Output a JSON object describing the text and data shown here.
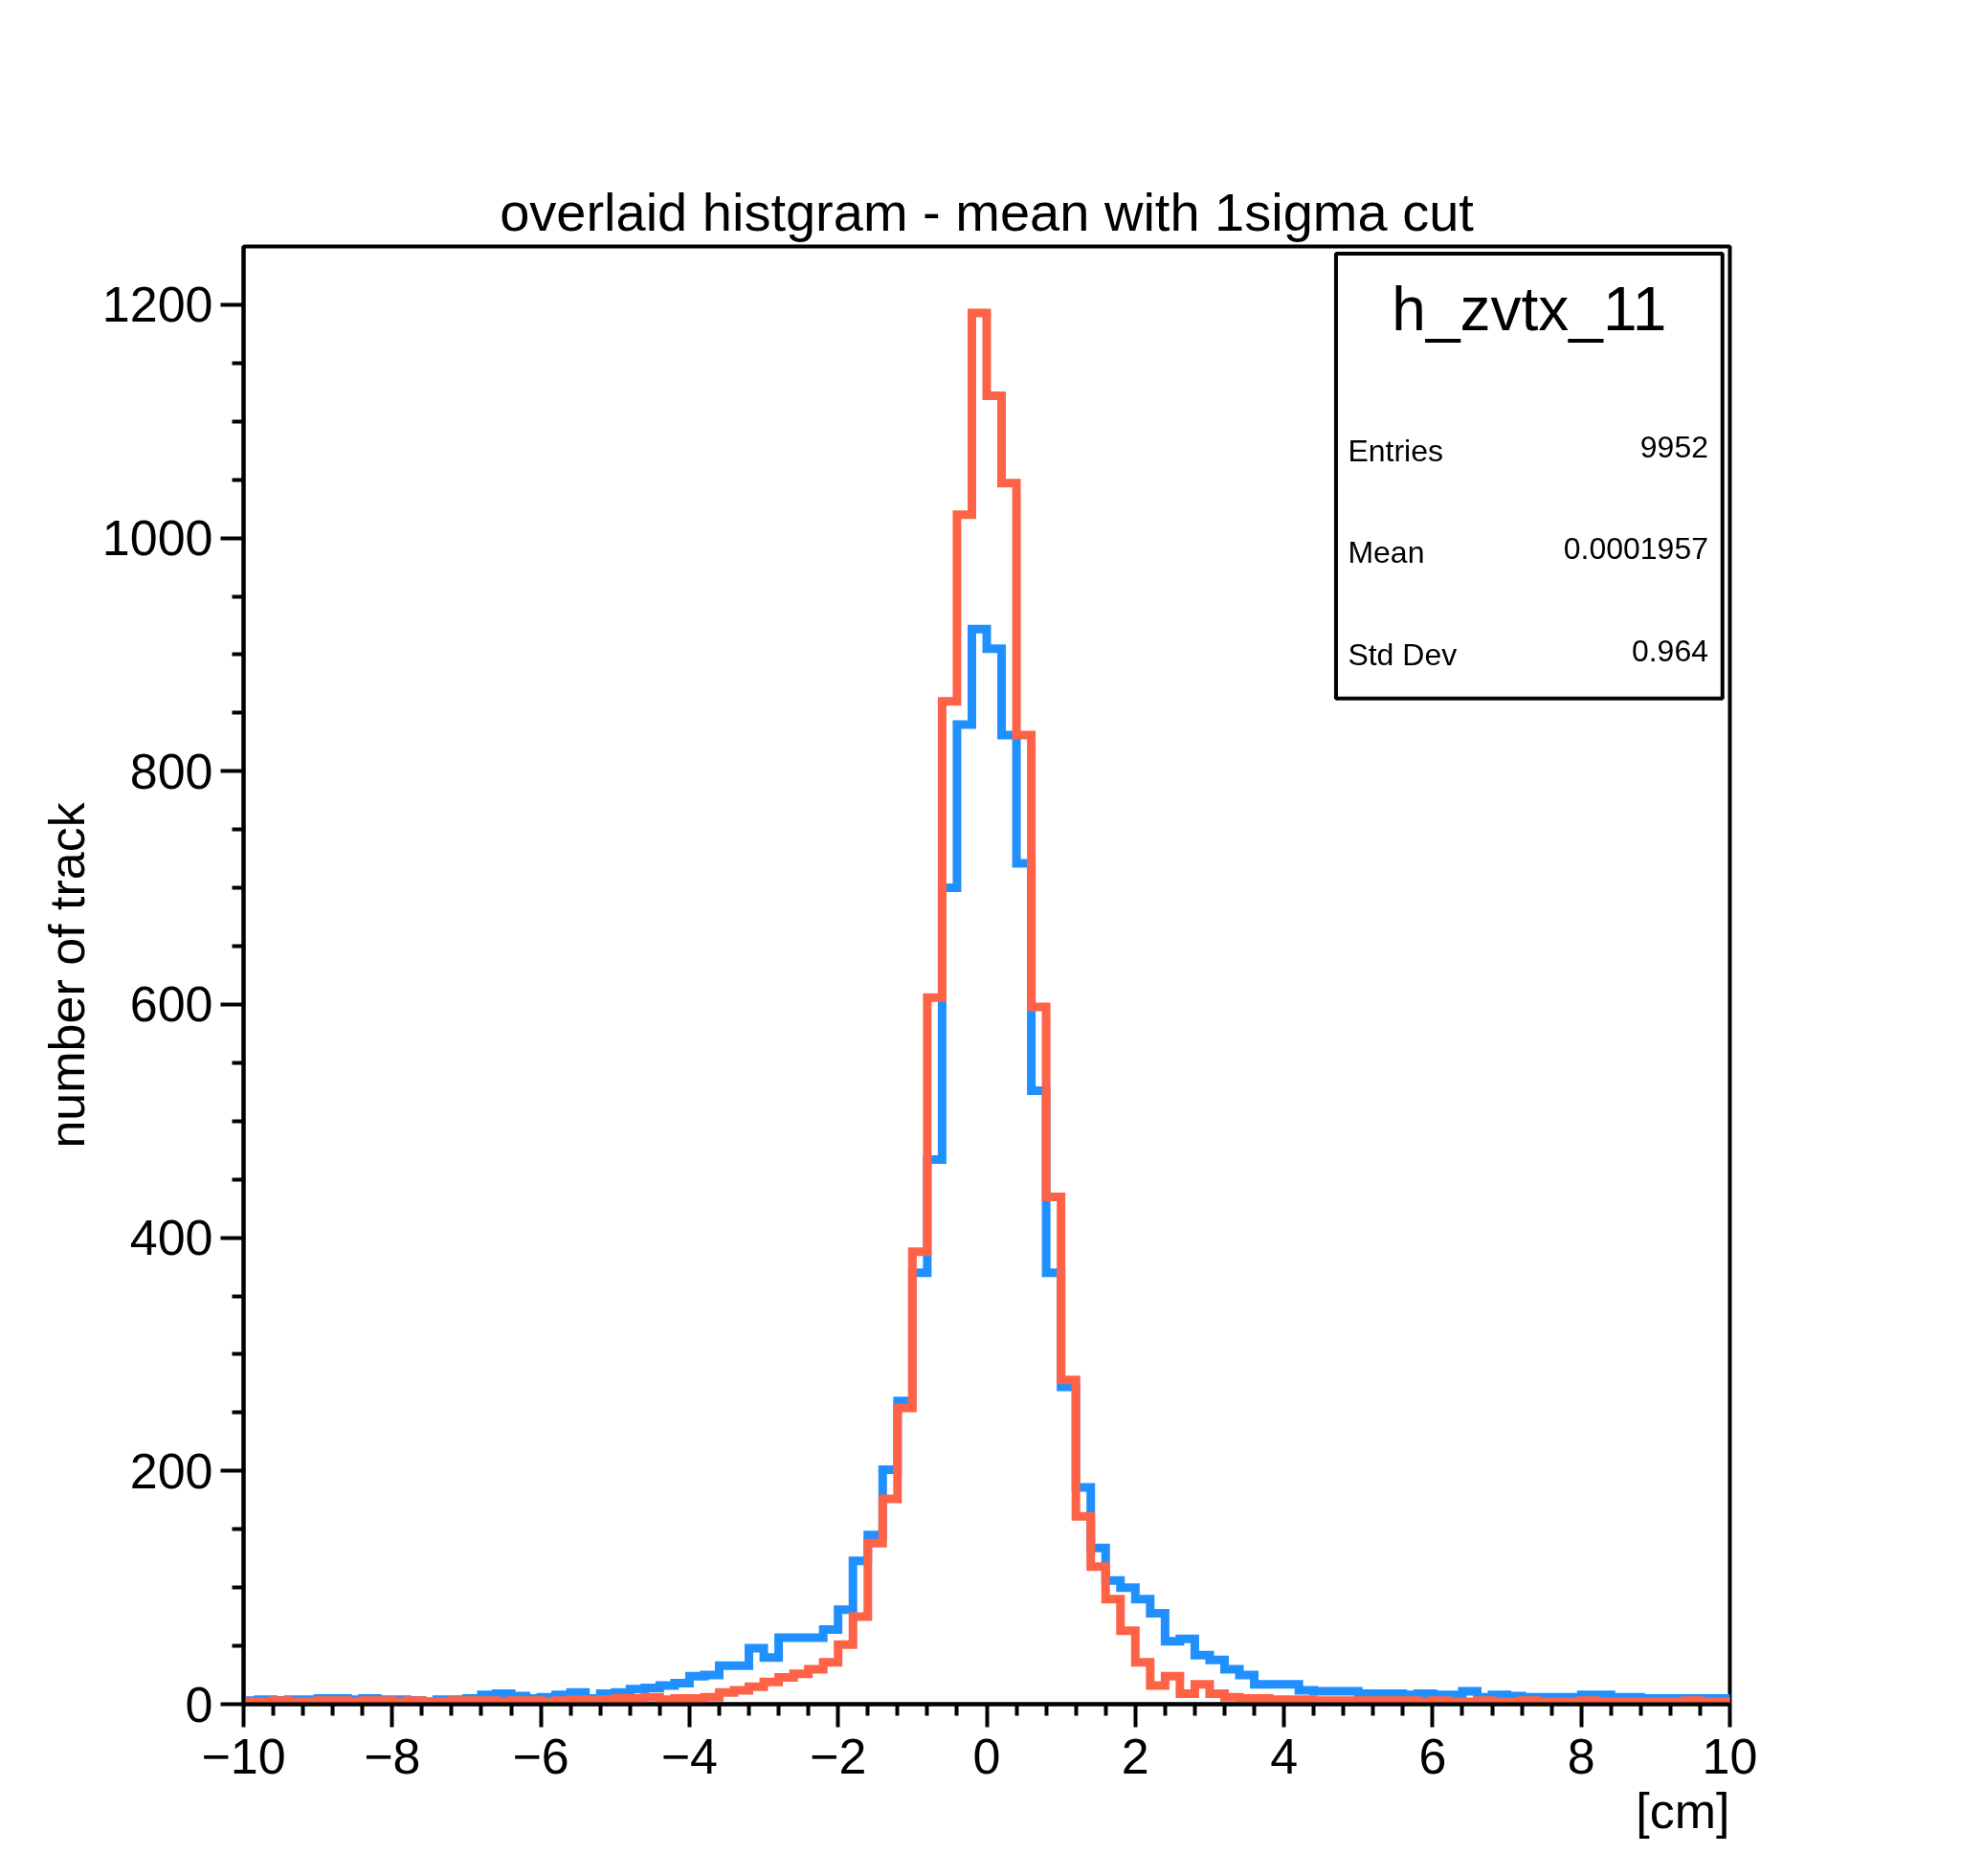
{
  "chart_data": {
    "type": "histogram",
    "title": "overlaid histgram - mean with 1sigma cut",
    "xlabel": "[cm]",
    "ylabel": "number of track",
    "bins": [
      -10,
      -9.8,
      -9.6,
      -9.4,
      -9.2,
      -9,
      -8.8,
      -8.6,
      -8.4,
      -8.2,
      -8,
      -7.8,
      -7.6,
      -7.4,
      -7.2,
      -7,
      -6.8,
      -6.6,
      -6.4,
      -6.2,
      -6,
      -5.8,
      -5.6,
      -5.4,
      -5.2,
      -5,
      -4.8,
      -4.6,
      -4.4,
      -4.2,
      -4,
      -3.8,
      -3.6,
      -3.4,
      -3.2,
      -3,
      -2.8,
      -2.6,
      -2.4,
      -2.2,
      -2,
      -1.8,
      -1.6,
      -1.4,
      -1.2,
      -1,
      -0.8,
      -0.6,
      -0.4,
      -0.2,
      0,
      0.2,
      0.4,
      0.6,
      0.8,
      1,
      1.2,
      1.4,
      1.6,
      1.8,
      2,
      2.2,
      2.4,
      2.6,
      2.8,
      3,
      3.2,
      3.4,
      3.6,
      3.8,
      4,
      4.2,
      4.4,
      4.6,
      4.8,
      5,
      5.2,
      5.4,
      5.6,
      5.8,
      6,
      6.2,
      6.4,
      6.6,
      6.8,
      7,
      7.2,
      7.4,
      7.6,
      7.8,
      8,
      8.2,
      8.4,
      8.6,
      8.8,
      9,
      9.2,
      9.4,
      9.6,
      9.8,
      10
    ],
    "series": [
      {
        "color": "#2090ff",
        "values": [
          3,
          4,
          3,
          4,
          4,
          5,
          5,
          4,
          5,
          4,
          4,
          3,
          2,
          4,
          4,
          5,
          8,
          9,
          7,
          5,
          6,
          8,
          10,
          5,
          9,
          10,
          13,
          14,
          16,
          18,
          24,
          25,
          33,
          33,
          48,
          40,
          57,
          57,
          57,
          64,
          81,
          123,
          145,
          201,
          260,
          370,
          467,
          700,
          840,
          922,
          905,
          831,
          721,
          526,
          370,
          272,
          186,
          134,
          106,
          100,
          90,
          78,
          54,
          56,
          42,
          38,
          30,
          25,
          17,
          17,
          17,
          12,
          11,
          11,
          11,
          9,
          9,
          9,
          8,
          9,
          8,
          8,
          11,
          6,
          8,
          7,
          6,
          6,
          6,
          6,
          8,
          8,
          6,
          6,
          5,
          5,
          5,
          5,
          5,
          5
        ]
      },
      {
        "color": "#ff6347",
        "values": [
          2,
          2,
          3,
          2,
          2,
          3,
          3,
          2,
          3,
          3,
          2,
          3,
          2,
          2,
          3,
          3,
          3,
          2,
          3,
          3,
          2,
          3,
          4,
          3,
          4,
          5,
          5,
          6,
          4,
          5,
          5,
          6,
          10,
          12,
          15,
          19,
          23,
          26,
          30,
          36,
          51,
          75,
          138,
          176,
          254,
          388,
          606,
          860,
          1020,
          1193,
          1122,
          1047,
          831,
          598,
          435,
          278,
          161,
          118,
          90,
          63,
          36,
          16,
          24,
          9,
          17,
          9,
          6,
          5,
          5,
          4,
          4,
          4,
          3,
          3,
          3,
          3,
          3,
          3,
          3,
          2,
          3,
          2,
          2,
          3,
          2,
          2,
          3,
          2,
          2,
          2,
          3,
          2,
          2,
          2,
          2,
          2,
          2,
          3,
          2,
          2
        ]
      }
    ],
    "xlim": [
      -10,
      10
    ],
    "ylim": [
      0,
      1250
    ],
    "xticks": [
      {
        "value": -10,
        "label": "−10"
      },
      {
        "value": -8,
        "label": "−8"
      },
      {
        "value": -6,
        "label": "−6"
      },
      {
        "value": -4,
        "label": "−4"
      },
      {
        "value": -2,
        "label": "−2"
      },
      0,
      2,
      4,
      6,
      8,
      10
    ],
    "yticks": [
      0,
      200,
      400,
      600,
      800,
      1000,
      1200
    ],
    "grid": false,
    "line_style": "solid",
    "annotations": [
      "h_zvtx_11",
      "Entries",
      "9952",
      "Mean",
      "0.0001957",
      "Std Dev",
      "0.964"
    ]
  }
}
